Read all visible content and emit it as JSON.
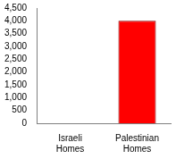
{
  "chart_data": {
    "type": "bar",
    "categories": [
      "Israeli Homes",
      "Palestinian Homes"
    ],
    "values": [
      0,
      4000
    ],
    "color": "#ff0000",
    "ylim": [
      0,
      4500
    ],
    "yticks": [
      0,
      500,
      {
        "value": 1000,
        "label": "1,000"
      },
      {
        "value": 1500,
        "label": "1,500"
      },
      {
        "value": 2000,
        "label": "2,000"
      },
      {
        "value": 2500,
        "label": "2,500"
      },
      {
        "value": 3000,
        "label": "3,000"
      },
      {
        "value": 3500,
        "label": "3,500"
      },
      {
        "value": 4000,
        "label": "4,000"
      },
      {
        "value": 4500,
        "label": "4,500"
      }
    ],
    "grid": false
  }
}
